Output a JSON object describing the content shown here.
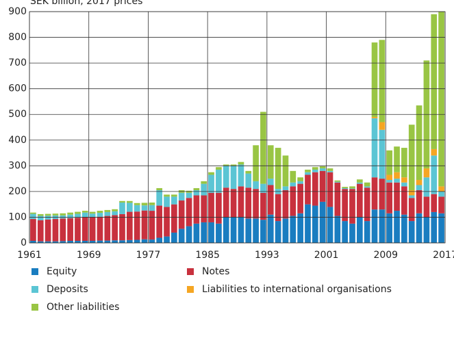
{
  "chart_data": {
    "type": "stacked_bar",
    "subtitle": "SEK billion, 2017 prices",
    "x": [
      1961,
      1962,
      1963,
      1964,
      1965,
      1966,
      1967,
      1968,
      1969,
      1970,
      1971,
      1972,
      1973,
      1974,
      1975,
      1976,
      1977,
      1978,
      1979,
      1980,
      1981,
      1982,
      1983,
      1984,
      1985,
      1986,
      1987,
      1988,
      1989,
      1990,
      1991,
      1992,
      1993,
      1994,
      1995,
      1996,
      1997,
      1998,
      1999,
      2000,
      2001,
      2002,
      2003,
      2004,
      2005,
      2006,
      2007,
      2008,
      2009,
      2010,
      2011,
      2012,
      2013,
      2014,
      2015,
      2016
    ],
    "series": [
      {
        "name": "Equity",
        "color": "#1a7dc0",
        "values": [
          8,
          6,
          6,
          6,
          7,
          8,
          8,
          8,
          8,
          9,
          9,
          10,
          10,
          11,
          12,
          14,
          13,
          20,
          25,
          40,
          55,
          65,
          75,
          80,
          80,
          75,
          100,
          100,
          100,
          95,
          95,
          90,
          110,
          85,
          95,
          105,
          115,
          150,
          145,
          160,
          140,
          105,
          85,
          75,
          100,
          85,
          130,
          130,
          115,
          125,
          110,
          85,
          115,
          100,
          120,
          115
        ]
      },
      {
        "name": "Notes",
        "color": "#c8313e",
        "values": [
          85,
          82,
          85,
          87,
          88,
          88,
          90,
          92,
          92,
          93,
          96,
          98,
          102,
          110,
          110,
          112,
          112,
          125,
          115,
          110,
          110,
          110,
          110,
          105,
          115,
          120,
          115,
          110,
          120,
          120,
          115,
          105,
          115,
          105,
          110,
          115,
          115,
          115,
          130,
          120,
          135,
          130,
          125,
          135,
          130,
          130,
          125,
          120,
          120,
          110,
          110,
          90,
          90,
          80,
          70,
          65
        ]
      },
      {
        "name": "Deposits",
        "color": "#5bc5d4",
        "values": [
          20,
          17,
          15,
          14,
          12,
          14,
          15,
          18,
          14,
          15,
          15,
          15,
          45,
          35,
          25,
          20,
          22,
          60,
          40,
          30,
          30,
          20,
          20,
          45,
          70,
          90,
          85,
          90,
          85,
          55,
          30,
          35,
          25,
          20,
          15,
          15,
          10,
          10,
          10,
          10,
          5,
          3,
          3,
          2,
          5,
          5,
          230,
          190,
          10,
          15,
          15,
          10,
          20,
          75,
          150,
          20
        ]
      },
      {
        "name": "Liabilities to international organisations",
        "color": "#f5a623",
        "values": [
          0,
          0,
          0,
          0,
          0,
          0,
          0,
          0,
          0,
          0,
          0,
          0,
          0,
          0,
          0,
          0,
          0,
          0,
          0,
          0,
          0,
          0,
          0,
          0,
          0,
          0,
          0,
          0,
          0,
          0,
          0,
          0,
          0,
          0,
          0,
          0,
          0,
          0,
          0,
          0,
          0,
          0,
          0,
          0,
          0,
          0,
          5,
          30,
          20,
          25,
          20,
          20,
          20,
          35,
          25,
          20
        ]
      },
      {
        "name": "Other liabilities",
        "color": "#99c544",
        "values": [
          5,
          7,
          7,
          7,
          8,
          8,
          8,
          7,
          7,
          8,
          8,
          8,
          6,
          7,
          8,
          10,
          10,
          8,
          8,
          8,
          10,
          8,
          8,
          10,
          10,
          10,
          5,
          5,
          10,
          10,
          140,
          280,
          130,
          160,
          120,
          45,
          15,
          10,
          10,
          8,
          10,
          5,
          5,
          8,
          12,
          15,
          290,
          320,
          95,
          100,
          115,
          255,
          290,
          420,
          525,
          680
        ]
      }
    ],
    "xlim": [
      1961,
      2017
    ],
    "xticks": [
      1961,
      1969,
      1977,
      1985,
      1993,
      2001,
      2009,
      2017
    ],
    "ylim": [
      0,
      900
    ],
    "yticks": [
      0,
      100,
      200,
      300,
      400,
      500,
      600,
      700,
      800,
      900
    ],
    "grid": true,
    "legend": "bottom"
  }
}
